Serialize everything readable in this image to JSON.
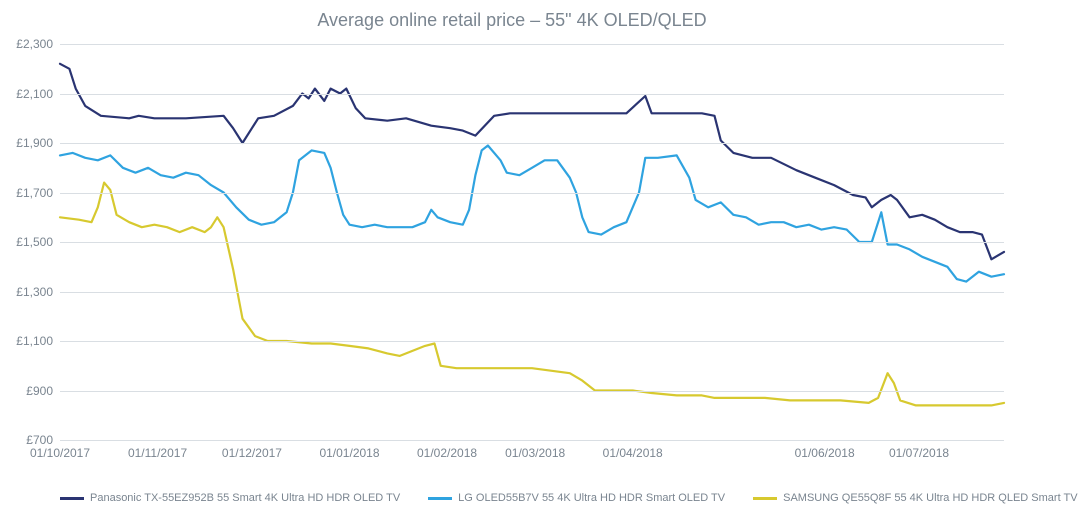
{
  "chart": {
    "type": "line",
    "title": "Average online retail price – 55\" 4K OLED/QLED",
    "title_fontsize": 18,
    "title_color": "#7a8590",
    "background_color": "#ffffff",
    "grid_color": "#d9dee3",
    "axis_text_color": "#7a8590",
    "tick_fontsize": 12,
    "legend_fontsize": 11,
    "line_width": 2.2,
    "x": {
      "min": 0,
      "max": 300,
      "ticks": [
        {
          "pos": 0,
          "label": "01/10/2017"
        },
        {
          "pos": 31,
          "label": "01/11/2017"
        },
        {
          "pos": 61,
          "label": "01/12/2017"
        },
        {
          "pos": 92,
          "label": "01/01/2018"
        },
        {
          "pos": 123,
          "label": "01/02/2018"
        },
        {
          "pos": 151,
          "label": "01/03/2018"
        },
        {
          "pos": 182,
          "label": "01/04/2018"
        },
        {
          "pos": 243,
          "label": "01/06/2018"
        },
        {
          "pos": 273,
          "label": "01/07/2018"
        }
      ]
    },
    "y": {
      "min": 700,
      "max": 2300,
      "tick_step": 200,
      "prefix": "£",
      "ticks": [
        700,
        900,
        1100,
        1300,
        1500,
        1700,
        1900,
        2100,
        2300
      ]
    },
    "series": [
      {
        "name": "Panasonic TX-55EZ952B 55 Smart 4K Ultra HD HDR OLED TV",
        "color": "#2a3472",
        "data": [
          [
            0,
            2220
          ],
          [
            3,
            2200
          ],
          [
            5,
            2120
          ],
          [
            8,
            2050
          ],
          [
            13,
            2010
          ],
          [
            22,
            2000
          ],
          [
            25,
            2010
          ],
          [
            30,
            2000
          ],
          [
            40,
            2000
          ],
          [
            52,
            2010
          ],
          [
            55,
            1960
          ],
          [
            58,
            1900
          ],
          [
            61,
            1960
          ],
          [
            63,
            2000
          ],
          [
            68,
            2010
          ],
          [
            74,
            2050
          ],
          [
            77,
            2100
          ],
          [
            79,
            2080
          ],
          [
            81,
            2120
          ],
          [
            84,
            2070
          ],
          [
            86,
            2120
          ],
          [
            89,
            2100
          ],
          [
            91,
            2120
          ],
          [
            94,
            2040
          ],
          [
            97,
            2000
          ],
          [
            104,
            1990
          ],
          [
            110,
            2000
          ],
          [
            118,
            1970
          ],
          [
            124,
            1960
          ],
          [
            128,
            1950
          ],
          [
            132,
            1930
          ],
          [
            138,
            2010
          ],
          [
            143,
            2020
          ],
          [
            150,
            2020
          ],
          [
            160,
            2020
          ],
          [
            170,
            2020
          ],
          [
            180,
            2020
          ],
          [
            186,
            2090
          ],
          [
            188,
            2020
          ],
          [
            196,
            2020
          ],
          [
            204,
            2020
          ],
          [
            208,
            2010
          ],
          [
            210,
            1910
          ],
          [
            214,
            1860
          ],
          [
            220,
            1840
          ],
          [
            226,
            1840
          ],
          [
            234,
            1790
          ],
          [
            240,
            1760
          ],
          [
            246,
            1730
          ],
          [
            252,
            1690
          ],
          [
            256,
            1680
          ],
          [
            258,
            1640
          ],
          [
            261,
            1670
          ],
          [
            264,
            1690
          ],
          [
            266,
            1670
          ],
          [
            270,
            1600
          ],
          [
            274,
            1610
          ],
          [
            278,
            1590
          ],
          [
            282,
            1560
          ],
          [
            286,
            1540
          ],
          [
            290,
            1540
          ],
          [
            293,
            1530
          ],
          [
            296,
            1430
          ],
          [
            300,
            1460
          ]
        ]
      },
      {
        "name": "LG OLED55B7V 55 4K Ultra HD HDR Smart OLED TV",
        "color": "#2fa3e0",
        "data": [
          [
            0,
            1850
          ],
          [
            4,
            1860
          ],
          [
            8,
            1840
          ],
          [
            12,
            1830
          ],
          [
            16,
            1850
          ],
          [
            20,
            1800
          ],
          [
            24,
            1780
          ],
          [
            28,
            1800
          ],
          [
            32,
            1770
          ],
          [
            36,
            1760
          ],
          [
            40,
            1780
          ],
          [
            44,
            1770
          ],
          [
            48,
            1730
          ],
          [
            52,
            1700
          ],
          [
            56,
            1640
          ],
          [
            60,
            1590
          ],
          [
            64,
            1570
          ],
          [
            68,
            1580
          ],
          [
            72,
            1620
          ],
          [
            74,
            1700
          ],
          [
            76,
            1830
          ],
          [
            80,
            1870
          ],
          [
            84,
            1860
          ],
          [
            86,
            1800
          ],
          [
            88,
            1700
          ],
          [
            90,
            1610
          ],
          [
            92,
            1570
          ],
          [
            96,
            1560
          ],
          [
            100,
            1570
          ],
          [
            104,
            1560
          ],
          [
            108,
            1560
          ],
          [
            112,
            1560
          ],
          [
            116,
            1580
          ],
          [
            118,
            1630
          ],
          [
            120,
            1600
          ],
          [
            124,
            1580
          ],
          [
            128,
            1570
          ],
          [
            130,
            1630
          ],
          [
            132,
            1770
          ],
          [
            134,
            1870
          ],
          [
            136,
            1890
          ],
          [
            140,
            1830
          ],
          [
            142,
            1780
          ],
          [
            146,
            1770
          ],
          [
            150,
            1800
          ],
          [
            154,
            1830
          ],
          [
            158,
            1830
          ],
          [
            162,
            1760
          ],
          [
            164,
            1700
          ],
          [
            166,
            1600
          ],
          [
            168,
            1540
          ],
          [
            172,
            1530
          ],
          [
            176,
            1560
          ],
          [
            180,
            1580
          ],
          [
            184,
            1700
          ],
          [
            186,
            1840
          ],
          [
            190,
            1840
          ],
          [
            196,
            1850
          ],
          [
            200,
            1760
          ],
          [
            202,
            1670
          ],
          [
            206,
            1640
          ],
          [
            210,
            1660
          ],
          [
            214,
            1610
          ],
          [
            218,
            1600
          ],
          [
            222,
            1570
          ],
          [
            226,
            1580
          ],
          [
            230,
            1580
          ],
          [
            234,
            1560
          ],
          [
            238,
            1570
          ],
          [
            242,
            1550
          ],
          [
            246,
            1560
          ],
          [
            250,
            1550
          ],
          [
            254,
            1500
          ],
          [
            258,
            1500
          ],
          [
            261,
            1620
          ],
          [
            263,
            1490
          ],
          [
            266,
            1490
          ],
          [
            270,
            1470
          ],
          [
            274,
            1440
          ],
          [
            278,
            1420
          ],
          [
            282,
            1400
          ],
          [
            285,
            1350
          ],
          [
            288,
            1340
          ],
          [
            292,
            1380
          ],
          [
            296,
            1360
          ],
          [
            300,
            1370
          ]
        ]
      },
      {
        "name": "SAMSUNG QE55Q8F 55 4K Ultra HD HDR QLED Smart TV",
        "color": "#d7c92f",
        "data": [
          [
            0,
            1600
          ],
          [
            6,
            1590
          ],
          [
            10,
            1580
          ],
          [
            12,
            1640
          ],
          [
            14,
            1740
          ],
          [
            16,
            1710
          ],
          [
            18,
            1610
          ],
          [
            22,
            1580
          ],
          [
            26,
            1560
          ],
          [
            30,
            1570
          ],
          [
            34,
            1560
          ],
          [
            38,
            1540
          ],
          [
            42,
            1560
          ],
          [
            46,
            1540
          ],
          [
            48,
            1560
          ],
          [
            50,
            1600
          ],
          [
            52,
            1560
          ],
          [
            55,
            1390
          ],
          [
            58,
            1190
          ],
          [
            62,
            1120
          ],
          [
            66,
            1100
          ],
          [
            72,
            1100
          ],
          [
            80,
            1090
          ],
          [
            86,
            1090
          ],
          [
            92,
            1080
          ],
          [
            98,
            1070
          ],
          [
            104,
            1050
          ],
          [
            108,
            1040
          ],
          [
            112,
            1060
          ],
          [
            116,
            1080
          ],
          [
            119,
            1090
          ],
          [
            121,
            1000
          ],
          [
            126,
            990
          ],
          [
            132,
            990
          ],
          [
            140,
            990
          ],
          [
            150,
            990
          ],
          [
            156,
            980
          ],
          [
            162,
            970
          ],
          [
            166,
            940
          ],
          [
            170,
            900
          ],
          [
            176,
            900
          ],
          [
            182,
            900
          ],
          [
            188,
            890
          ],
          [
            196,
            880
          ],
          [
            204,
            880
          ],
          [
            208,
            870
          ],
          [
            216,
            870
          ],
          [
            224,
            870
          ],
          [
            232,
            860
          ],
          [
            240,
            860
          ],
          [
            248,
            860
          ],
          [
            257,
            850
          ],
          [
            260,
            870
          ],
          [
            263,
            970
          ],
          [
            265,
            930
          ],
          [
            267,
            860
          ],
          [
            272,
            840
          ],
          [
            280,
            840
          ],
          [
            288,
            840
          ],
          [
            296,
            840
          ],
          [
            300,
            850
          ]
        ]
      }
    ]
  }
}
